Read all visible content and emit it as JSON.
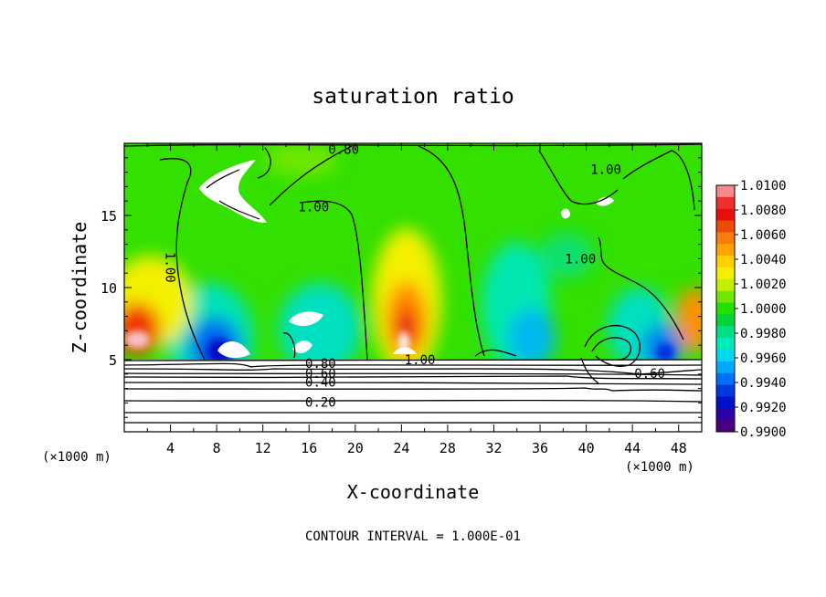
{
  "chart_data": {
    "type": "heatmap",
    "title": "saturation ratio",
    "xlabel": "X-coordinate",
    "ylabel": "Z-coordinate",
    "x_unit_left": "(×1000 m)",
    "x_unit_right": "(×1000 m)",
    "xlim": [
      0,
      50
    ],
    "ylim": [
      0,
      20
    ],
    "xticks": [
      "4",
      "8",
      "12",
      "16",
      "20",
      "24",
      "28",
      "32",
      "36",
      "40",
      "44",
      "48"
    ],
    "yticks": [
      "5",
      "10",
      "15"
    ],
    "footer": "CONTOUR INTERVAL = 1.000E-01",
    "colorbar": {
      "min": 0.99,
      "max": 1.01,
      "step": 0.001,
      "labels": [
        "1.0100",
        "1.0080",
        "1.0060",
        "1.0040",
        "1.0020",
        "1.0000",
        "0.9980",
        "0.9960",
        "0.9940",
        "0.9920",
        "0.9900"
      ],
      "colors": [
        "#f48a8a",
        "#f03030",
        "#e80f0f",
        "#ee4a08",
        "#f97c0d",
        "#ffa300",
        "#ffd000",
        "#f4f000",
        "#c4f000",
        "#6ee800",
        "#22e000",
        "#00d43a",
        "#00e083",
        "#00eac0",
        "#00d8f0",
        "#00a8ff",
        "#0070f8",
        "#0038e0",
        "#0010c8",
        "#2a00a8",
        "#4a0080"
      ]
    },
    "contour_labels": [
      {
        "text": "0.80",
        "x": 19.0,
        "y": 19.6
      },
      {
        "text": "1.00",
        "x": 16.4,
        "y": 15.6
      },
      {
        "text": "1.00",
        "x": 4.0,
        "y": 11.4
      },
      {
        "text": "1.00",
        "x": 41.7,
        "y": 18.2
      },
      {
        "text": "1.00",
        "x": 39.5,
        "y": 12.0
      },
      {
        "text": "1.00",
        "x": 25.6,
        "y": 5.0
      },
      {
        "text": "0.80",
        "x": 17.0,
        "y": 4.75
      },
      {
        "text": "0.60",
        "x": 17.0,
        "y": 4.05
      },
      {
        "text": "0.60",
        "x": 45.5,
        "y": 4.05
      },
      {
        "text": "0.40",
        "x": 17.0,
        "y": 3.45
      },
      {
        "text": "0.20",
        "x": 17.0,
        "y": 2.05
      }
    ],
    "cloud_base_z": 5.0,
    "grid": false,
    "legend": "colorbar-right"
  }
}
